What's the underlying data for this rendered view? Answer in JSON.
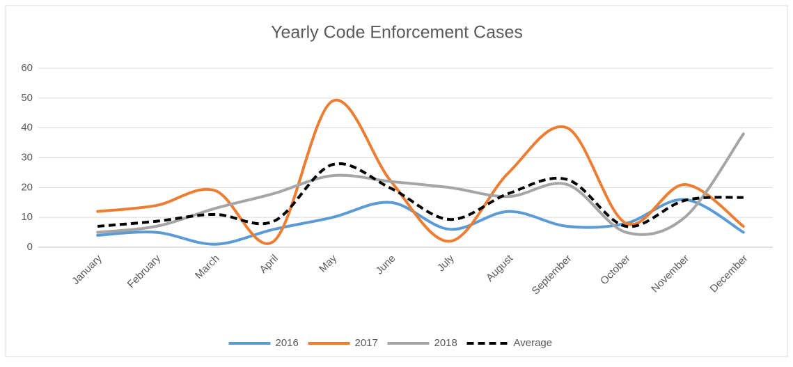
{
  "chart_data": {
    "type": "line",
    "title": "Yearly Code Enforcement Cases",
    "categories": [
      "January",
      "February",
      "March",
      "April",
      "May",
      "June",
      "July",
      "August",
      "September",
      "October",
      "November",
      "December"
    ],
    "series": [
      {
        "name": "2016",
        "color": "#5b9bd5",
        "values": [
          4,
          5,
          1,
          6,
          10,
          15,
          6,
          12,
          7,
          8,
          16,
          5
        ]
      },
      {
        "name": "2017",
        "color": "#ed7d31",
        "values": [
          12,
          14,
          19,
          2,
          49,
          22,
          2,
          25,
          40,
          8,
          21,
          7
        ]
      },
      {
        "name": "2018",
        "color": "#a5a5a5",
        "values": [
          5,
          7,
          13,
          18,
          24,
          22,
          20,
          17,
          21,
          5,
          10,
          38
        ]
      },
      {
        "name": "Average",
        "color": "#000000",
        "dashed": true,
        "values": [
          7,
          8.7,
          11,
          8.7,
          27.7,
          19.7,
          9.3,
          18,
          22.7,
          7,
          15.7,
          16.7
        ]
      }
    ],
    "ylim": [
      0,
      60
    ],
    "yticks": [
      0,
      10,
      20,
      30,
      40,
      50,
      60
    ],
    "grid": true,
    "smooth": true,
    "legend": "bottom"
  }
}
